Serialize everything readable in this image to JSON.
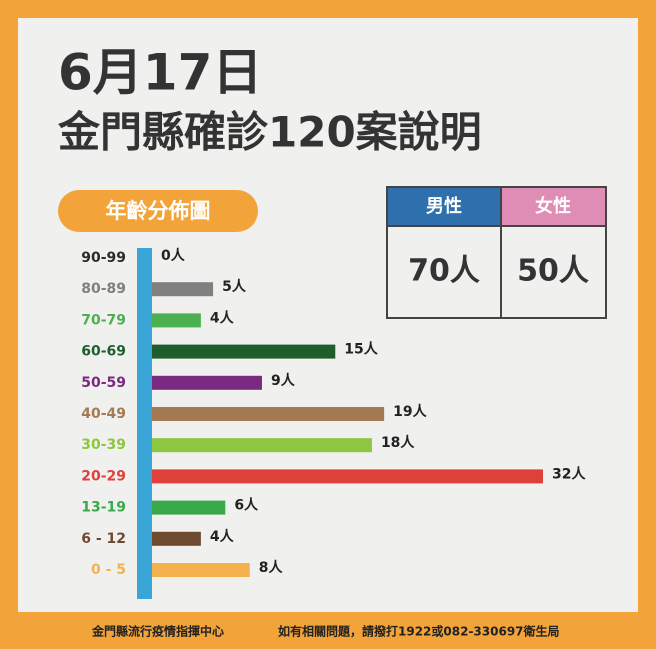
{
  "title": "6月17日",
  "subtitle": "金門縣確診120案說明",
  "badge": "年齡分佈圖",
  "gender": {
    "headers": [
      "男性",
      "女性"
    ],
    "cells": [
      "70人",
      "50人"
    ],
    "colors": [
      "#2e6fad",
      "#df8db5"
    ]
  },
  "chart_data": {
    "type": "hbar",
    "categories": [
      "90-99",
      "80-89",
      "70-79",
      "60-69",
      "50-59",
      "40-49",
      "30-39",
      "20-29",
      "13-19",
      "6 - 12",
      "0  -  5"
    ],
    "values": [
      0,
      5,
      4,
      15,
      9,
      19,
      18,
      32,
      6,
      4,
      8
    ],
    "value_labels": [
      "0人",
      "5人",
      "4人",
      "15人",
      "9人",
      "19人",
      "18人",
      "32人",
      "6人",
      "4人",
      "8人"
    ],
    "colors": [
      "#2b2b2b",
      "#808080",
      "#4cb050",
      "#1d5e2c",
      "#7a2a80",
      "#a37a52",
      "#8dc63f",
      "#e0403a",
      "#3aa94a",
      "#6e4a2e",
      "#f4b14e"
    ],
    "axis_color": "#3aa6d8"
  },
  "footer": [
    "金門縣流行疫情指揮中心",
    "如有相關問題，請撥打1922或082-330697衛生局"
  ]
}
